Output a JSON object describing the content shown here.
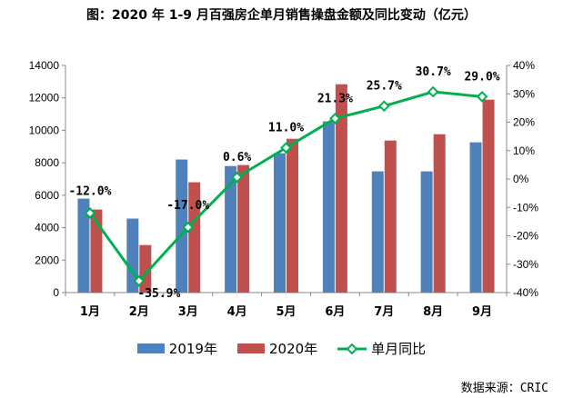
{
  "chart_data": {
    "type": "bar",
    "title": "图：2020 年 1-9 月百强房企单月销售操盘金额及同比变动（亿元）",
    "categories": [
      "1月",
      "2月",
      "3月",
      "4月",
      "5月",
      "6月",
      "7月",
      "8月",
      "9月"
    ],
    "series": [
      {
        "name": "2019年",
        "type": "bar",
        "axis": "left",
        "color": "#4F81BD",
        "values": [
          5790,
          4560,
          8200,
          7800,
          8590,
          10550,
          7470,
          7470,
          9260
        ]
      },
      {
        "name": "2020年",
        "type": "bar",
        "axis": "left",
        "color": "#C0504D",
        "values": [
          5120,
          2930,
          6800,
          7860,
          9480,
          12840,
          9370,
          9760,
          11890
        ]
      },
      {
        "name": "单月同比",
        "type": "line",
        "axis": "right",
        "color": "#00B050",
        "values": [
          -12.0,
          -35.9,
          -17.0,
          0.6,
          11.0,
          21.3,
          25.7,
          30.7,
          29.0
        ],
        "labels": [
          "-12.0%",
          "-35.9%",
          "-17.0%",
          "0.6%",
          "11.0%",
          "21.3%",
          "25.7%",
          "30.7%",
          "29.0%"
        ]
      }
    ],
    "y_left": {
      "min": 0,
      "max": 14000,
      "ticks": [
        "0",
        "2000",
        "4000",
        "6000",
        "8000",
        "10000",
        "12000",
        "14000"
      ]
    },
    "y_right": {
      "min": -40,
      "max": 40,
      "ticks": [
        "-40%",
        "-30%",
        "-20%",
        "-10%",
        "0%",
        "10%",
        "20%",
        "30%",
        "40%"
      ]
    },
    "legend": "bottom",
    "grid": false
  },
  "source": "数据来源：CRIC"
}
